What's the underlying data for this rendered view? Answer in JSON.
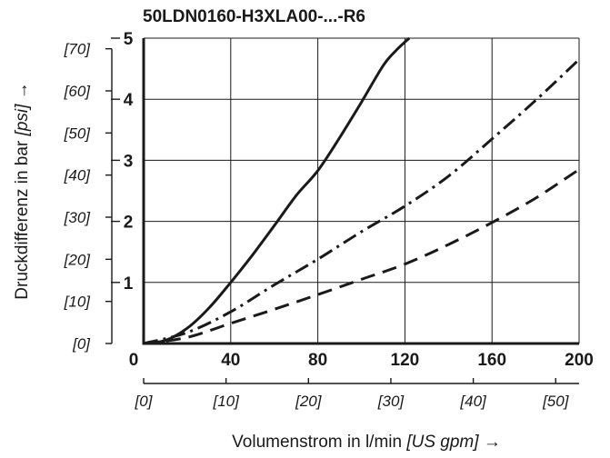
{
  "chart_data": {
    "type": "line",
    "title": "50LDN0160-H3XLA00-...-R6",
    "x_primary": {
      "ticks": [
        0,
        40,
        80,
        120,
        160,
        200
      ],
      "range": [
        0,
        200
      ],
      "label_prefix": "Volumenstrom in l/min ",
      "label_unit": "[US gpm]",
      "label_arrow": " →"
    },
    "x_secondary": {
      "ticks": [
        "[0]",
        "[10]",
        "[20]",
        "[30]",
        "[40]",
        "[50]"
      ],
      "values": [
        0,
        10,
        20,
        30,
        40,
        50
      ],
      "factor_per_primary": 3.785
    },
    "y_primary": {
      "ticks": [
        1,
        2,
        3,
        4,
        5
      ],
      "range": [
        0,
        5
      ],
      "label_prefix": "Druckdifferenz in bar ",
      "label_unit": "[psi]",
      "label_arrow": " →"
    },
    "y_secondary": {
      "ticks": [
        "[0]",
        "[10]",
        "[20]",
        "[30]",
        "[40]",
        "[50]",
        "[60]",
        "[70]"
      ],
      "values": [
        0,
        10,
        20,
        30,
        40,
        50,
        60,
        70
      ],
      "factor_per_primary": 14.5038
    },
    "grid": true,
    "legend": "none",
    "series": [
      {
        "style": "solid",
        "x": [
          0,
          10,
          20,
          30,
          40,
          50,
          60,
          70,
          80,
          90,
          100,
          110,
          116,
          122
        ],
        "y": [
          0,
          0.05,
          0.25,
          0.58,
          1.0,
          1.45,
          1.93,
          2.42,
          2.83,
          3.37,
          3.95,
          4.55,
          4.8,
          5.0
        ]
      },
      {
        "style": "dash-dot",
        "x": [
          0,
          20,
          40,
          60,
          80,
          100,
          120,
          140,
          160,
          180,
          200
        ],
        "y": [
          0,
          0.18,
          0.52,
          0.96,
          1.38,
          1.83,
          2.25,
          2.74,
          3.35,
          3.98,
          4.65
        ]
      },
      {
        "style": "dashed",
        "x": [
          0,
          20,
          40,
          60,
          80,
          100,
          120,
          140,
          160,
          180,
          200
        ],
        "y": [
          0,
          0.1,
          0.33,
          0.56,
          0.8,
          1.05,
          1.3,
          1.62,
          1.98,
          2.38,
          2.85
        ]
      }
    ]
  }
}
